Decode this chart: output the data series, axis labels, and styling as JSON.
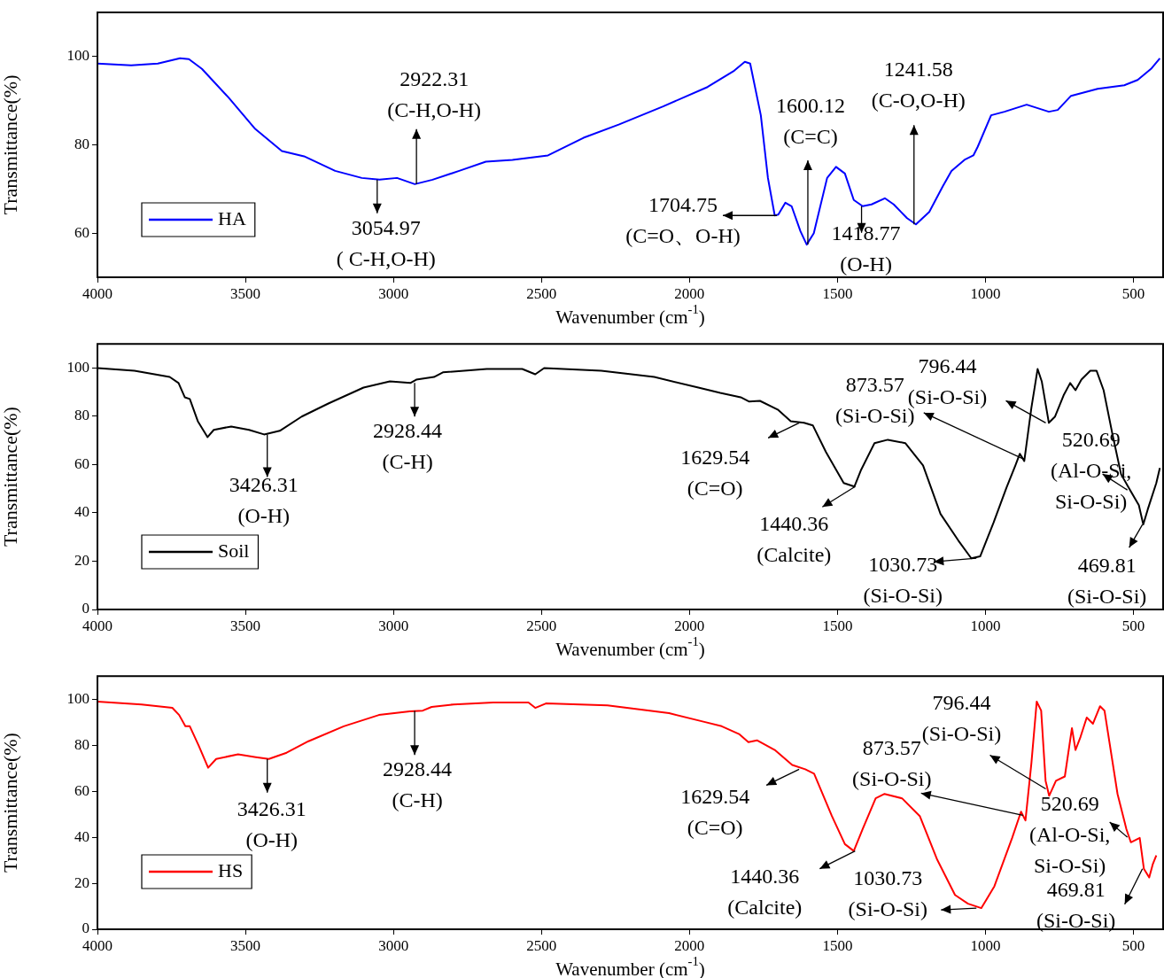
{
  "chart_data": [
    {
      "type": "line",
      "xlabel": "Wavenumber (cm$^{-1}$)",
      "ylabel": "Transmittance(%)",
      "xlim": [
        4000,
        400
      ],
      "xticks": [
        4000,
        3500,
        3000,
        2500,
        2000,
        1500,
        1000,
        500
      ],
      "ylim": [
        50,
        110
      ],
      "yticks": [
        60,
        80,
        100
      ],
      "legend": "bottom left",
      "marker": "none",
      "x": [
        4000,
        3886,
        3796,
        3721,
        3691,
        3647,
        3557,
        3467,
        3377,
        3302,
        3197,
        3107,
        3047,
        2988,
        2928,
        2868,
        2778,
        2688,
        2598,
        2478,
        2358,
        2239,
        2089,
        1939,
        1849,
        1813,
        1795,
        1759,
        1735,
        1712,
        1700,
        1676,
        1655,
        1625,
        1604,
        1580,
        1535,
        1505,
        1475,
        1445,
        1415,
        1385,
        1340,
        1310,
        1265,
        1235,
        1190,
        1145,
        1115,
        1071,
        1041,
        1026,
        981,
        936,
        861,
        786,
        756,
        711,
        621,
        531,
        486,
        441,
        411
      ],
      "series": [
        {
          "name": "HA",
          "color": "#0000ff",
          "values": [
            98.4,
            98,
            98.4,
            99.6,
            99.4,
            97.2,
            90.7,
            83.6,
            78.6,
            77.4,
            74.1,
            72.5,
            72.1,
            72.5,
            71.1,
            72.1,
            74.1,
            76.2,
            76.6,
            77.6,
            81.6,
            84.6,
            88.7,
            93.1,
            96.8,
            98.8,
            98.4,
            86.7,
            72.5,
            64.0,
            64.2,
            66.9,
            66.1,
            60.4,
            57.4,
            60.0,
            72.5,
            75.0,
            73.5,
            67.5,
            66.1,
            66.5,
            67.9,
            66.5,
            63.4,
            62.0,
            64.8,
            70.5,
            74.1,
            76.6,
            77.6,
            79.6,
            86.7,
            87.5,
            89.1,
            87.5,
            87.9,
            91.1,
            92.7,
            93.5,
            94.7,
            97.2,
            99.6
          ]
        }
      ],
      "annotations": [
        {
          "text": "2922.31\n(C-H,O-H)",
          "x": 2922.31,
          "y": 71.1
        },
        {
          "text": "3054.97\n( C-H,O-H)",
          "x": 3054.97,
          "y": 72.1
        },
        {
          "text": "1704.75\n(C=O、O-H)",
          "x": 1704.75,
          "y": 64.0
        },
        {
          "text": "1600.12\n(C=C)",
          "x": 1600.12,
          "y": 57.4
        },
        {
          "text": "1418.77\n(O-H)",
          "x": 1418.77,
          "y": 66.1
        },
        {
          "text": "1241.58\n(C-O,O-H)",
          "x": 1241.58,
          "y": 62.0
        }
      ]
    },
    {
      "type": "line",
      "xlabel": "Wavenumber (cm$^{-1}$)",
      "ylabel": "Transmittance(%)",
      "xlim": [
        4000,
        400
      ],
      "xticks": [
        4000,
        3500,
        3000,
        2500,
        2000,
        1500,
        1000,
        500
      ],
      "ylim": [
        0,
        110
      ],
      "yticks": [
        0,
        20,
        40,
        60,
        80,
        100
      ],
      "legend": "bottom left",
      "marker": "none",
      "x": [
        4000,
        3875,
        3756,
        3726,
        3705,
        3688,
        3661,
        3628,
        3607,
        3548,
        3488,
        3437,
        3384,
        3310,
        3220,
        3101,
        3012,
        2943,
        2923,
        2863,
        2833,
        2685,
        2565,
        2521,
        2491,
        2298,
        2119,
        1970,
        1896,
        1827,
        1798,
        1762,
        1702,
        1658,
        1613,
        1583,
        1539,
        1479,
        1443,
        1420,
        1375,
        1330,
        1271,
        1211,
        1152,
        1092,
        1048,
        1018,
        973,
        929,
        899,
        884,
        869,
        845,
        824,
        810,
        786,
        765,
        735,
        714,
        696,
        676,
        646,
        625,
        601,
        571,
        542,
        512,
        482,
        467,
        452,
        423,
        411
      ],
      "series": [
        {
          "name": "Soil",
          "color": "#000000",
          "values": [
            100,
            98.9,
            96.3,
            93.8,
            87.9,
            87.2,
            78.0,
            71.4,
            74.4,
            75.8,
            74.4,
            72.5,
            74.0,
            79.9,
            85.3,
            91.9,
            94.5,
            93.8,
            95.2,
            96.3,
            98.2,
            99.6,
            99.6,
            97.4,
            100,
            98.9,
            96.3,
            91.9,
            89.7,
            87.9,
            86.1,
            86.4,
            82.8,
            78.0,
            77.3,
            76.2,
            65.2,
            52.4,
            50.9,
            57.9,
            68.9,
            70.3,
            68.9,
            59.7,
            39.6,
            28.6,
            21.2,
            22.0,
            35.9,
            50.5,
            59.7,
            64.5,
            61.5,
            83.5,
            99.6,
            94.5,
            77.3,
            79.9,
            89.0,
            93.8,
            90.8,
            95.2,
            98.9,
            98.9,
            90.8,
            72.5,
            56.0,
            49.5,
            43.2,
            35.2,
            41.4,
            52.4,
            58.6
          ]
        }
      ],
      "annotations": [
        {
          "text": "3426.31\n(O-H)",
          "x": 3426.31,
          "y": 72.5
        },
        {
          "text": "2928.44\n(C-H)",
          "x": 2928.44,
          "y": 93.8
        },
        {
          "text": "1629.54\n(C=O)",
          "x": 1629.54,
          "y": 77.3
        },
        {
          "text": "1440.36\n(Calcite)",
          "x": 1440.36,
          "y": 50.9
        },
        {
          "text": "1030.73\n(Si-O-Si)",
          "x": 1030.73,
          "y": 21.2
        },
        {
          "text": "873.57\n(Si-O-Si)",
          "x": 873.57,
          "y": 62.4
        },
        {
          "text": "796.44\n(Si-O-Si)",
          "x": 796.44,
          "y": 77.3
        },
        {
          "text": "520.69\n(Al-O-Si,\nSi-O-Si)",
          "x": 520.69,
          "y": 49.5
        },
        {
          "text": "469.81\n(Si-O-Si)",
          "x": 469.81,
          "y": 35.2
        }
      ]
    },
    {
      "type": "line",
      "xlabel": "Wavenumber (cm$^{-1}$)",
      "ylabel": "Transmittance(%)",
      "xlim": [
        4000,
        400
      ],
      "xticks": [
        4000,
        3500,
        3000,
        2500,
        2000,
        1500,
        1000,
        500
      ],
      "ylim": [
        0,
        110
      ],
      "yticks": [
        0,
        20,
        40,
        60,
        80,
        100
      ],
      "legend": "bottom left",
      "marker": "none",
      "x": [
        4000,
        3851,
        3747,
        3724,
        3703,
        3688,
        3658,
        3626,
        3599,
        3525,
        3465,
        3421,
        3361,
        3287,
        3168,
        3049,
        2945,
        2901,
        2871,
        2797,
        2663,
        2544,
        2521,
        2485,
        2277,
        2069,
        1950,
        1891,
        1831,
        1801,
        1772,
        1712,
        1653,
        1609,
        1579,
        1519,
        1475,
        1445,
        1415,
        1371,
        1341,
        1282,
        1222,
        1163,
        1103,
        1059,
        1014,
        970,
        910,
        880,
        865,
        845,
        827,
        812,
        797,
        785,
        762,
        732,
        708,
        696,
        679,
        658,
        637,
        613,
        598,
        554,
        524,
        509,
        479,
        465,
        447,
        435,
        423
      ],
      "series": [
        {
          "name": "HS",
          "color": "#ff0000",
          "values": [
            98.9,
            97.7,
            96.2,
            93.1,
            88.2,
            88.2,
            79.8,
            70.2,
            74.0,
            76.0,
            74.8,
            74.0,
            76.7,
            81.7,
            88.2,
            93.1,
            94.7,
            95.0,
            96.6,
            97.7,
            98.5,
            98.5,
            96.2,
            98.1,
            97.3,
            93.9,
            90.1,
            88.2,
            84.7,
            81.3,
            82.1,
            77.9,
            71.4,
            69.5,
            67.6,
            49.2,
            37.0,
            34.0,
            43.5,
            56.9,
            58.8,
            56.9,
            49.2,
            30.2,
            14.9,
            11.1,
            9.2,
            18.7,
            39.7,
            51.1,
            47.3,
            72.1,
            98.9,
            95.0,
            64.5,
            58.0,
            64.5,
            66.4,
            87.4,
            77.9,
            83.6,
            92.0,
            89.3,
            96.9,
            95.0,
            58.8,
            43.5,
            37.8,
            39.7,
            26.3,
            22.5,
            28.2,
            32.1
          ]
        }
      ],
      "annotations": [
        {
          "text": "3426.31\n(O-H)",
          "x": 3426.31,
          "y": 74.0
        },
        {
          "text": "2928.44\n(C-H)",
          "x": 2928.44,
          "y": 95.0
        },
        {
          "text": "1629.54\n(C=O)",
          "x": 1629.54,
          "y": 69.5
        },
        {
          "text": "1440.36\n(Calcite)",
          "x": 1440.36,
          "y": 34.0
        },
        {
          "text": "1030.73\n(Si-O-Si)",
          "x": 1030.73,
          "y": 9.2
        },
        {
          "text": "873.57\n(Si-O-Si)",
          "x": 873.57,
          "y": 49.5
        },
        {
          "text": "796.44\n(Si-O-Si)",
          "x": 796.44,
          "y": 61
        },
        {
          "text": "520.69\n(Al-O-Si,\nSi-O-Si)",
          "x": 520.69,
          "y": 40
        },
        {
          "text": "469.81\n(Si-O-Si)",
          "x": 469.81,
          "y": 26.3
        }
      ]
    }
  ]
}
